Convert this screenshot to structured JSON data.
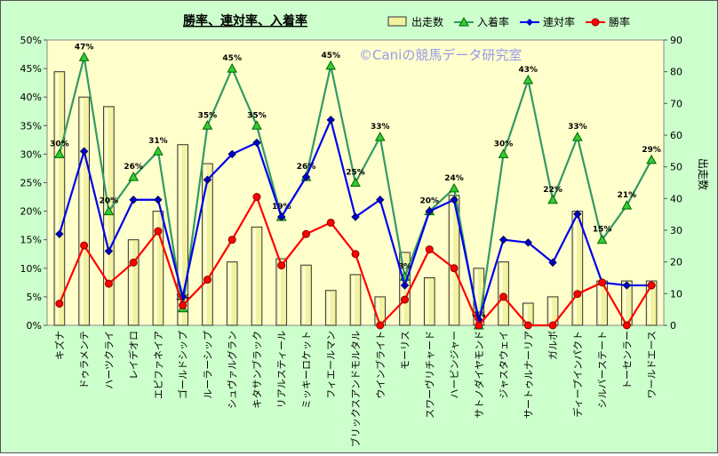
{
  "chart_data": {
    "type": "bar+line",
    "title": "勝率、連対率、入着率",
    "watermark": "©Caniの競馬データ研究室",
    "ylabel_right": "出走数",
    "y_left": {
      "min": 0,
      "max": 50,
      "step": 5,
      "format": "%"
    },
    "y_right": {
      "min": 0,
      "max": 90,
      "step": 10
    },
    "grid": false,
    "legend_position": "top-right",
    "categories": [
      "キズナ",
      "ドゥラメンテ",
      "ハーツクライ",
      "レイデオロ",
      "エピファネイア",
      "ゴールドシップ",
      "ルーラーシップ",
      "シュヴァルグラン",
      "キタサンブラック",
      "リアルスティール",
      "ミッキーロケット",
      "フィエールマン",
      "ブリックスアンドモルタル",
      "ウインブライト",
      "モーリス",
      "スワーヴリチャード",
      "ハービンジャー",
      "サトノダイヤモンド",
      "ジャスタウェイ",
      "サートゥルナーリア",
      "ガルボ",
      "ディープインパクト",
      "シルバーステート",
      "トーセンラー",
      "ワールドエース"
    ],
    "series": [
      {
        "name": "出走数",
        "kind": "bar",
        "axis": "right",
        "color": "#f2f2a0",
        "values": [
          80,
          72,
          69,
          27,
          36,
          57,
          51,
          20,
          31,
          21,
          19,
          11,
          16,
          9,
          23,
          15,
          41,
          18,
          20,
          7,
          9,
          36,
          14,
          14,
          14
        ]
      },
      {
        "name": "入着率",
        "kind": "line",
        "axis": "left",
        "color": "#339966",
        "marker": "triangle",
        "values": [
          30,
          47,
          20,
          26,
          30.5,
          3,
          35,
          45,
          35,
          19,
          26,
          45.5,
          25,
          33,
          8.5,
          20,
          24,
          0,
          30,
          43,
          22,
          33,
          15,
          21,
          29
        ],
        "labels": [
          "30%",
          "47%",
          "20%",
          "26%",
          "31%",
          "3%",
          "35%",
          "45%",
          "35%",
          "19%",
          "26%",
          "45%",
          "25%",
          "33%",
          "8%",
          "20%",
          "24%",
          "0%",
          "30%",
          "43%",
          "22%",
          "33%",
          "15%",
          "21%",
          "29%"
        ]
      },
      {
        "name": "連対率",
        "kind": "line",
        "axis": "left",
        "color": "#0000ee",
        "marker": "diamond",
        "values": [
          16,
          30.5,
          13,
          22,
          22,
          5,
          25.5,
          30,
          32,
          19,
          26,
          36,
          19,
          22,
          7,
          20,
          22,
          1,
          15,
          14.5,
          11,
          19.5,
          7.5,
          7,
          7
        ]
      },
      {
        "name": "勝率",
        "kind": "line",
        "axis": "left",
        "color": "#ff0000",
        "marker": "circle",
        "values": [
          3.8,
          14,
          7.3,
          11,
          16.5,
          3.5,
          8,
          15,
          22.5,
          10.5,
          16,
          18,
          12.5,
          0,
          4.5,
          13.3,
          10,
          0,
          5,
          0,
          0,
          5.5,
          7.5,
          0,
          7
        ]
      }
    ]
  }
}
